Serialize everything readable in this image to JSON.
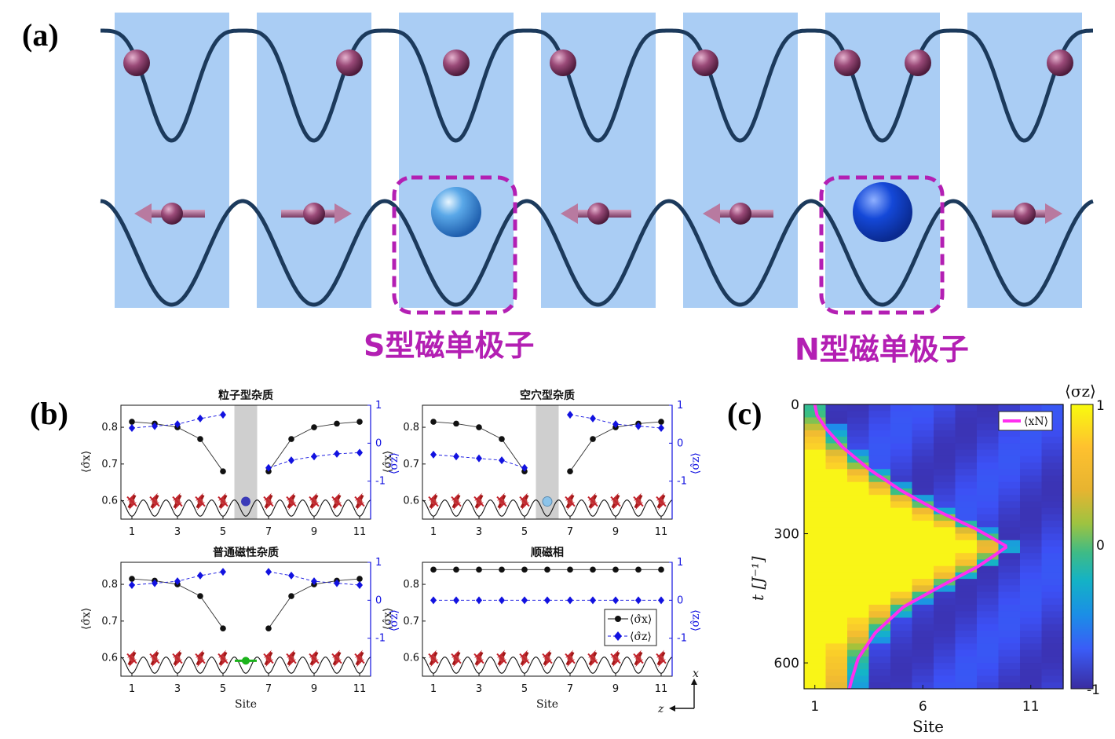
{
  "panel_a": {
    "label": "(a)",
    "mono_s_label": "S型磁单极子",
    "mono_n_label": "N型磁单极子",
    "colors": {
      "accent": "#b31fb3",
      "cell": "#aacdf4",
      "spin_ball": "#9a4a78",
      "mono_s": "#5aa8e8",
      "mono_n": "#1448d8"
    },
    "top_row_particles": [
      "left",
      "right",
      "center",
      "left",
      "left",
      "both",
      "right"
    ],
    "bottom_row_cells": [
      "arrow-left",
      "arrow-right",
      "monopole-s",
      "arrow-left",
      "arrow-left",
      "monopole-n",
      "arrow-right"
    ]
  },
  "panel_b": {
    "label": "(b)",
    "x_label": "Site",
    "x_ticks": [
      "1",
      "3",
      "5",
      "7",
      "9",
      "11"
    ],
    "left_ticks": [
      "0.8",
      "0.7",
      "0.6"
    ],
    "right_ticks": [
      "1",
      "0",
      "-1"
    ],
    "left_axis_label": "⟨σ̂x⟩",
    "right_axis_label": "⟨σ̂z⟩",
    "legend_sx": "⟨σ̂x⟩",
    "legend_sz": "⟨σ̂z⟩",
    "frame_x": "x",
    "frame_z": "z",
    "subplots": [
      {
        "title": "粒子型杂质",
        "sx": [
          0.815,
          0.81,
          0.8,
          0.768,
          0.68,
          null,
          0.68,
          0.768,
          0.8,
          0.81,
          0.815
        ],
        "sz": [
          0.4,
          0.45,
          0.5,
          0.65,
          0.75,
          null,
          -0.65,
          -0.45,
          -0.35,
          -0.28,
          -0.25
        ],
        "gap": true,
        "impurity": "particle"
      },
      {
        "title": "空穴型杂质",
        "sx": [
          0.815,
          0.81,
          0.8,
          0.768,
          0.68,
          null,
          0.68,
          0.768,
          0.8,
          0.81,
          0.815
        ],
        "sz": [
          -0.3,
          -0.35,
          -0.4,
          -0.45,
          -0.65,
          null,
          0.75,
          0.65,
          0.5,
          0.45,
          0.4
        ],
        "gap": true,
        "impurity": "hole"
      },
      {
        "title": "普通磁性杂质",
        "sx": [
          0.815,
          0.81,
          0.8,
          0.768,
          0.68,
          null,
          0.68,
          0.768,
          0.8,
          0.81,
          0.815
        ],
        "sz": [
          0.4,
          0.45,
          0.5,
          0.65,
          0.75,
          null,
          0.75,
          0.65,
          0.5,
          0.45,
          0.4
        ],
        "gap": false,
        "impurity": "magnetic"
      },
      {
        "title": "顺磁相",
        "sx": [
          0.84,
          0.84,
          0.84,
          0.84,
          0.84,
          0.84,
          0.84,
          0.84,
          0.84,
          0.84,
          0.84
        ],
        "sz": [
          0,
          0,
          0,
          0,
          0,
          0,
          0,
          0,
          0,
          0,
          0
        ],
        "gap": false,
        "impurity": "none"
      }
    ]
  },
  "panel_c": {
    "label": "(c)",
    "x_label": "Site",
    "y_label": "t [J⁻¹]",
    "x_ticks": [
      "1",
      "6",
      "11"
    ],
    "y_ticks": [
      "0",
      "300",
      "600"
    ],
    "legend": "⟨xN⟩",
    "colorbar_label": "⟨σz⟩",
    "colorbar_ticks": [
      "1",
      "0",
      "-1"
    ],
    "line_color": "#ff2ef0"
  },
  "chart_data": [
    {
      "type": "line",
      "title": "粒子型杂质",
      "categories": [
        1,
        2,
        3,
        4,
        5,
        6,
        7,
        8,
        9,
        10,
        11
      ],
      "xlabel": "Site",
      "ylabel": "⟨σ̂x⟩",
      "y2label": "⟨σ̂z⟩",
      "ylim": [
        0.55,
        0.86
      ],
      "y2lim": [
        -2,
        1
      ],
      "series": [
        {
          "name": "⟨σ̂x⟩",
          "axis": "left",
          "values": [
            0.815,
            0.81,
            0.8,
            0.768,
            0.68,
            null,
            0.68,
            0.768,
            0.8,
            0.81,
            0.815
          ]
        },
        {
          "name": "⟨σ̂z⟩",
          "axis": "right",
          "values": [
            0.4,
            0.45,
            0.5,
            0.65,
            0.75,
            null,
            -0.65,
            -0.45,
            -0.35,
            -0.28,
            -0.25
          ]
        }
      ]
    },
    {
      "type": "line",
      "title": "空穴型杂质",
      "categories": [
        1,
        2,
        3,
        4,
        5,
        6,
        7,
        8,
        9,
        10,
        11
      ],
      "xlabel": "Site",
      "ylabel": "⟨σ̂x⟩",
      "y2label": "⟨σ̂z⟩",
      "ylim": [
        0.55,
        0.86
      ],
      "y2lim": [
        -2,
        1
      ],
      "series": [
        {
          "name": "⟨σ̂x⟩",
          "axis": "left",
          "values": [
            0.815,
            0.81,
            0.8,
            0.768,
            0.68,
            null,
            0.68,
            0.768,
            0.8,
            0.81,
            0.815
          ]
        },
        {
          "name": "⟨σ̂z⟩",
          "axis": "right",
          "values": [
            -0.3,
            -0.35,
            -0.4,
            -0.45,
            -0.65,
            null,
            0.75,
            0.65,
            0.5,
            0.45,
            0.4
          ]
        }
      ]
    },
    {
      "type": "line",
      "title": "普通磁性杂质",
      "categories": [
        1,
        2,
        3,
        4,
        5,
        6,
        7,
        8,
        9,
        10,
        11
      ],
      "xlabel": "Site",
      "ylabel": "⟨σ̂x⟩",
      "y2label": "⟨σ̂z⟩",
      "ylim": [
        0.55,
        0.86
      ],
      "y2lim": [
        -2,
        1
      ],
      "series": [
        {
          "name": "⟨σ̂x⟩",
          "axis": "left",
          "values": [
            0.815,
            0.81,
            0.8,
            0.768,
            0.68,
            null,
            0.68,
            0.768,
            0.8,
            0.81,
            0.815
          ]
        },
        {
          "name": "⟨σ̂z⟩",
          "axis": "right",
          "values": [
            0.4,
            0.45,
            0.5,
            0.65,
            0.75,
            null,
            0.75,
            0.65,
            0.5,
            0.45,
            0.4
          ]
        }
      ]
    },
    {
      "type": "line",
      "title": "顺磁相",
      "categories": [
        1,
        2,
        3,
        4,
        5,
        6,
        7,
        8,
        9,
        10,
        11
      ],
      "xlabel": "Site",
      "ylabel": "⟨σ̂x⟩",
      "y2label": "⟨σ̂z⟩",
      "ylim": [
        0.55,
        0.86
      ],
      "y2lim": [
        -2,
        1
      ],
      "legend": "bottom-right",
      "series": [
        {
          "name": "⟨σ̂x⟩",
          "axis": "left",
          "values": [
            0.84,
            0.84,
            0.84,
            0.84,
            0.84,
            0.84,
            0.84,
            0.84,
            0.84,
            0.84,
            0.84
          ]
        },
        {
          "name": "⟨σ̂z⟩",
          "axis": "right",
          "values": [
            0,
            0,
            0,
            0,
            0,
            0,
            0,
            0,
            0,
            0,
            0
          ]
        }
      ]
    },
    {
      "type": "heatmap",
      "xlabel": "Site",
      "ylabel": "t [J⁻¹]",
      "x": [
        1,
        2,
        3,
        4,
        5,
        6,
        7,
        8,
        9,
        10,
        11,
        12
      ],
      "ylim": [
        0,
        660
      ],
      "colorbar": {
        "label": "⟨σz⟩",
        "range": [
          -1,
          1
        ]
      },
      "series": [
        {
          "name": "⟨xN⟩",
          "points": [
            [
              1,
              0
            ],
            [
              1.1,
              25
            ],
            [
              1.5,
              55
            ],
            [
              2.3,
              100
            ],
            [
              3.5,
              150
            ],
            [
              5,
              200
            ],
            [
              6.8,
              250
            ],
            [
              8.5,
              290
            ],
            [
              9.9,
              330
            ],
            [
              8.6,
              375
            ],
            [
              6.9,
              420
            ],
            [
              5.1,
              470
            ],
            [
              3.8,
              530
            ],
            [
              3.0,
              590
            ],
            [
              2.7,
              640
            ],
            [
              2.6,
              660
            ]
          ]
        }
      ]
    }
  ]
}
